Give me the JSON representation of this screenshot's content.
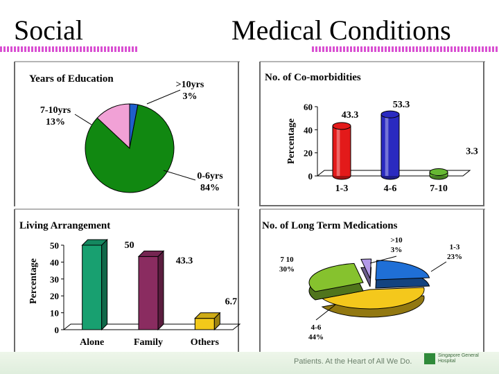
{
  "slide": {
    "heading_left": "Social",
    "heading_right": "Medical Conditions",
    "footer_tagline": "Patients. At the Heart of All We Do.",
    "footer_logo_text": "Singapore General Hospital",
    "colors": {
      "stripe": "#d94fd2",
      "frame": "#6a6a6a"
    }
  },
  "chart_data": [
    {
      "id": "education",
      "type": "pie",
      "title": "Years of Education",
      "slices": [
        {
          "label": "0-6yrs",
          "pct_text": "84%",
          "value": 84,
          "color": "#118811"
        },
        {
          "label": "7-10yrs",
          "pct_text": "13%",
          "value": 13,
          "color": "#f1a1d6"
        },
        {
          "label": ">10yrs",
          "pct_text": "3%",
          "value": 3,
          "color": "#1f5fcc"
        }
      ]
    },
    {
      "id": "comorbidities",
      "type": "bar",
      "title": "No. of Co-morbidities",
      "ylabel": "Percentage",
      "ylim": [
        0,
        60
      ],
      "yticks": [
        0,
        20,
        40,
        60
      ],
      "categories": [
        "1-3",
        "4-6",
        "7-10"
      ],
      "values": [
        43.3,
        53.3,
        3.3
      ],
      "value_labels": [
        "43.3",
        "53.3",
        "3.3"
      ],
      "colors": [
        "#e31a1a",
        "#2a2ac0",
        "#66b832"
      ]
    },
    {
      "id": "living",
      "type": "bar",
      "title": "Living Arrangement",
      "ylabel": "Percentage",
      "ylim": [
        0,
        50
      ],
      "yticks": [
        0,
        10,
        20,
        30,
        40,
        50
      ],
      "categories": [
        "Alone",
        "Family",
        "Others"
      ],
      "values": [
        50,
        43.3,
        6.7
      ],
      "value_labels": [
        "50",
        "43.3",
        "6.7"
      ],
      "colors": [
        "#18a070",
        "#8a2c60",
        "#f2c91a"
      ]
    },
    {
      "id": "medications",
      "type": "pie",
      "title": "No. of Long Term Medications",
      "slices": [
        {
          "label": "1-3",
          "pct_text": "23%",
          "value": 23,
          "color": "#1f6fd6"
        },
        {
          "label": "4-6",
          "pct_text": "44%",
          "value": 44,
          "color": "#f4c81c"
        },
        {
          "label": "7 10",
          "pct_text": "30%",
          "value": 30,
          "color": "#86c22e"
        },
        {
          "label": ">10",
          "pct_text": "3%",
          "value": 3,
          "color": "#b39ae8"
        }
      ]
    }
  ]
}
